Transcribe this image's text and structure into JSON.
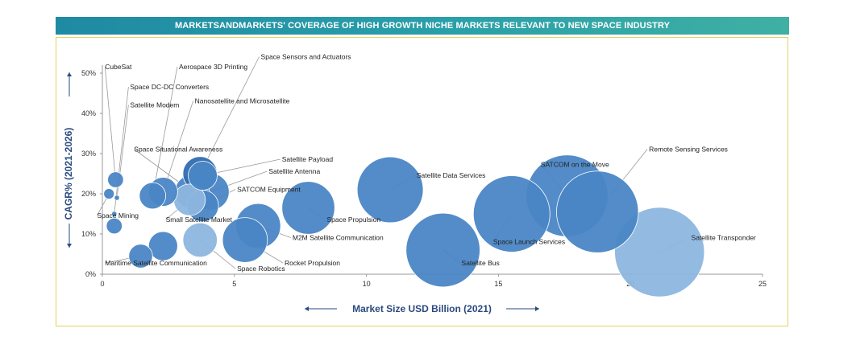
{
  "banner": {
    "title": "MARKETSANDMARKETS' COVERAGE OF HIGH GROWTH NICHE MARKETS RELEVANT TO NEW SPACE INDUSTRY"
  },
  "colors": {
    "dark": "#2f6db0",
    "mid": "#4a86c5",
    "light": "#8db6df",
    "leader": "#9a9a9a",
    "axis_title": "#2b4a7e"
  },
  "chart_data": {
    "type": "scatter",
    "title": "MARKETSANDMARKETS' COVERAGE OF HIGH GROWTH NICHE MARKETS RELEVANT TO NEW SPACE INDUSTRY",
    "xlabel": "Market Size USD Billion (2021)",
    "ylabel": "CAGR% (2021-2026)",
    "xlim": [
      0,
      25
    ],
    "ylim": [
      0,
      50
    ],
    "x_ticks": [
      0,
      5,
      10,
      15,
      20,
      25
    ],
    "y_ticks": [
      "0%",
      "10%",
      "20%",
      "30%",
      "40%",
      "50%"
    ],
    "points": [
      {
        "name": "CubeSat",
        "x": 0.5,
        "y": 23.5,
        "r": 0.3,
        "shade": "mid",
        "label_x": 0.1,
        "label_y": 51
      },
      {
        "name": "Space DC-DC Converters",
        "x": 0.45,
        "y": 15,
        "r": 0.1,
        "shade": "mid",
        "label_x": 1.05,
        "label_y": 46
      },
      {
        "name": "Satellite Modem",
        "x": 0.55,
        "y": 19,
        "r": 0.1,
        "shade": "mid",
        "label_x": 1.05,
        "label_y": 41.5
      },
      {
        "name": "Space Mining",
        "x": 0.25,
        "y": 20,
        "r": 0.2,
        "shade": "mid",
        "label_x": -0.2,
        "label_y": 14
      },
      {
        "name": "Satellite",
        "x": 0.45,
        "y": 12,
        "r": 0.3,
        "shade": "mid",
        "label_x": null,
        "label_y": null
      },
      {
        "name": "Aerospace 3D Printing",
        "x": 1.9,
        "y": 19.5,
        "r": 0.5,
        "shade": "mid",
        "label_x": 2.9,
        "label_y": 51
      },
      {
        "name": "Nanosatellite and Microsatellite",
        "x": 2.3,
        "y": 20.5,
        "r": 0.55,
        "shade": "mid",
        "label_x": 3.5,
        "label_y": 42.5
      },
      {
        "name": "Space Situational Awareness",
        "x": 3.4,
        "y": 20.5,
        "r": 0.65,
        "shade": "mid",
        "label_x": 1.2,
        "label_y": 30.5
      },
      {
        "name": "Space Sensors and Actuators",
        "x": 3.7,
        "y": 25,
        "r": 0.65,
        "shade": "dark",
        "label_x": 6.0,
        "label_y": 53.5
      },
      {
        "name": "Satellite Payload",
        "x": 3.8,
        "y": 24.5,
        "r": 0.55,
        "shade": "mid",
        "label_x": 6.8,
        "label_y": 28
      },
      {
        "name": "Satellite Antenna",
        "x": 4.1,
        "y": 20.5,
        "r": 0.7,
        "shade": "mid",
        "label_x": 6.3,
        "label_y": 25
      },
      {
        "name": "SATCOM Equipment",
        "x": 3.8,
        "y": 17,
        "r": 0.6,
        "shade": "mid",
        "label_x": 5.1,
        "label_y": 20.5
      },
      {
        "name": "Small Satellite Market",
        "x": 3.3,
        "y": 18.5,
        "r": 0.6,
        "shade": "light",
        "label_x": 2.4,
        "label_y": 13
      },
      {
        "name": "Space Propulsion",
        "x": 7.8,
        "y": 16.5,
        "r": 1.0,
        "shade": "mid",
        "label_x": 8.5,
        "label_y": 13
      },
      {
        "name": "M2M Satellite Communication",
        "x": 5.9,
        "y": 12,
        "r": 0.85,
        "shade": "mid",
        "label_x": 7.2,
        "label_y": 8.5
      },
      {
        "name": "Rocket Propulsion",
        "x": 5.4,
        "y": 8.5,
        "r": 0.85,
        "shade": "mid",
        "label_x": 6.9,
        "label_y": 2.2
      },
      {
        "name": "Space Robotics",
        "x": 3.7,
        "y": 8.5,
        "r": 0.65,
        "shade": "light",
        "label_x": 5.1,
        "label_y": 0.8
      },
      {
        "name": "Maritime Satellite Communication",
        "x": 1.45,
        "y": 4.5,
        "r": 0.45,
        "shade": "mid",
        "label_x": 0.1,
        "label_y": 2.2
      },
      {
        "name": "Maritime",
        "x": 2.3,
        "y": 7,
        "r": 0.55,
        "shade": "mid",
        "label_x": null,
        "label_y": null
      },
      {
        "name": "Satellite Data Services",
        "x": 10.9,
        "y": 21,
        "r": 1.25,
        "shade": "mid",
        "label_x": 11.9,
        "label_y": 24
      },
      {
        "name": "Satellite Bus",
        "x": 12.9,
        "y": 6,
        "r": 1.4,
        "shade": "mid",
        "label_x": 13.6,
        "label_y": 2.2
      },
      {
        "name": "Space Launch Services",
        "x": 15.5,
        "y": 15,
        "r": 1.45,
        "shade": "mid",
        "label_x": 14.8,
        "label_y": 7.5
      },
      {
        "name": "SATCOM on the Move",
        "x": 17.6,
        "y": 19.5,
        "r": 1.55,
        "shade": "mid",
        "label_x": 16.6,
        "label_y": 26.7
      },
      {
        "name": "Remote Sensing Services",
        "x": 18.75,
        "y": 15.5,
        "r": 1.55,
        "shade": "mid",
        "label_x": 20.7,
        "label_y": 30.5
      },
      {
        "name": "Satellite Transponder",
        "x": 21.1,
        "y": 5.5,
        "r": 1.7,
        "shade": "light",
        "label_x": 22.3,
        "label_y": 8.5
      }
    ]
  }
}
